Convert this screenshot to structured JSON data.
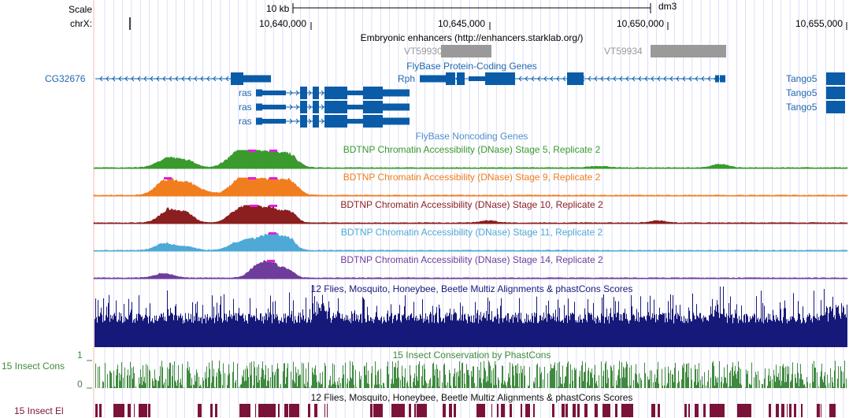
{
  "scale": {
    "label": "Scale",
    "bar_label": "10 kb",
    "assembly": "dm3"
  },
  "chrom": {
    "label": "chrX:",
    "ticks": [
      "10,640,000",
      "10,645,000",
      "10,650,000",
      "10,655,000"
    ]
  },
  "colors": {
    "grid_blue": "#c9c9f5",
    "grid_red": "#f5b8b8",
    "gene_blue": "#0a5ca8",
    "gene_text": "#1f67b0",
    "enhancer_gray": "#9a9a9a",
    "stage5": "#3a9a2e",
    "stage9": "#f07d1e",
    "stage10": "#8b1e1e",
    "stage11": "#4fa9d6",
    "stage14": "#6e3d9c",
    "multiz": "#17197a",
    "phastcons": "#3f8a3f",
    "elements": "#7b1339",
    "peak_top": "#e01ee0"
  },
  "tracks": {
    "enhancers": {
      "title": "Embryonic enhancers (http://enhancers.starklab.org/)",
      "items": [
        {
          "name": "VT59930"
        },
        {
          "name": "VT59934"
        }
      ]
    },
    "flybase_coding": {
      "title": "FlyBase Protein-Coding Genes",
      "genes": {
        "cg32676": "CG32676",
        "rph": "Rph",
        "ras1": "ras",
        "ras2": "ras",
        "ras3": "ras",
        "tango5_1": "Tango5",
        "tango5_2": "Tango5",
        "tango5_3": "Tango5"
      }
    },
    "flybase_noncoding": {
      "title": "FlyBase Noncoding Genes"
    },
    "dnase": [
      {
        "key": "s5",
        "title": "BDTNP Chromatin Accessibility (DNase) Stage 5, Replicate 2"
      },
      {
        "key": "s9",
        "title": "BDTNP Chromatin Accessibility (DNase) Stage 9, Replicate 2"
      },
      {
        "key": "s10",
        "title": "BDTNP Chromatin Accessibility (DNase) Stage 10, Replicate 2"
      },
      {
        "key": "s11",
        "title": "BDTNP Chromatin Accessibility (DNase) Stage 11, Replicate 2"
      },
      {
        "key": "s14",
        "title": "BDTNP Chromatin Accessibility (DNase) Stage 14, Replicate 2"
      }
    ],
    "multiz": {
      "title": "12 Flies, Mosquito, Honeybee, Beetle Multiz Alignments & phastCons Scores"
    },
    "cons": {
      "title": "15 Insect Conservation by PhastCons",
      "side_label": "15 Insect Cons",
      "y_max": "1",
      "y_min": "0"
    },
    "elements": {
      "title": "12 Flies, Mosquito, Honeybee, Beetle Multiz Alignments & phastCons Scores",
      "side_label": "15 Insect El"
    }
  }
}
